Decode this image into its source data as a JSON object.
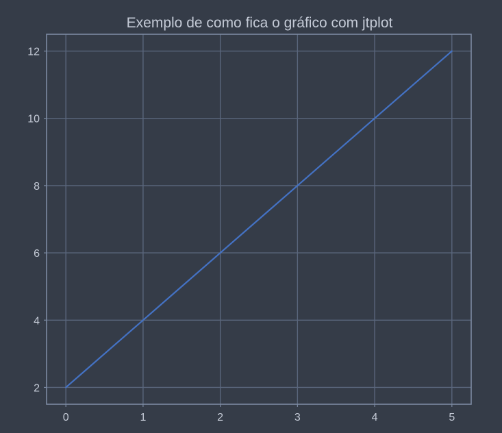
{
  "chart_data": {
    "type": "line",
    "title": "Exemplo de como fica o gráfico com jtplot",
    "xlabel": "",
    "ylabel": "",
    "x": [
      0,
      1,
      2,
      3,
      4,
      5
    ],
    "series": [
      {
        "values": [
          2,
          4,
          6,
          8,
          10,
          12
        ],
        "color": "#4472c4"
      }
    ],
    "xlim": [
      -0.25,
      5.25
    ],
    "ylim": [
      1.5,
      12.5
    ],
    "x_ticks": [
      0,
      1,
      2,
      3,
      4,
      5
    ],
    "y_ticks": [
      2,
      4,
      6,
      8,
      10,
      12
    ],
    "grid": true,
    "legend": "none",
    "colors": {
      "background": "#353c48",
      "grid": "#5a667c",
      "frame": "#7c8aa2",
      "text": "#c4cad6"
    }
  }
}
